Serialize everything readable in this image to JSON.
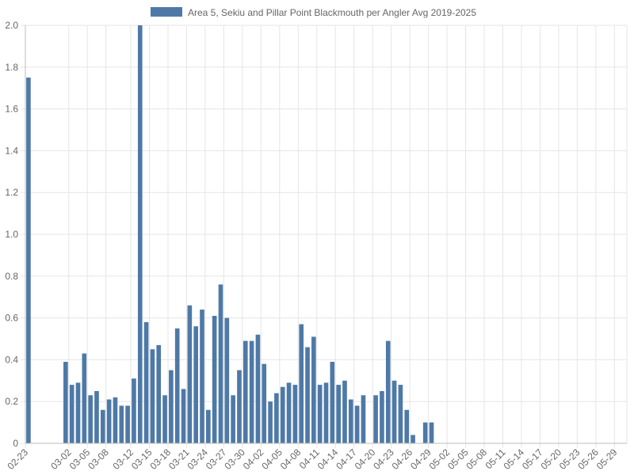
{
  "chart_data": {
    "type": "bar",
    "title": "",
    "xlabel": "",
    "ylabel": "",
    "ylim": [
      0,
      2.0
    ],
    "yticks": [
      "0",
      "0.2",
      "0.4",
      "0.6",
      "0.8",
      "1.0",
      "1.2",
      "1.4",
      "1.6",
      "1.8",
      "2.0"
    ],
    "grid": true,
    "legend_position": "top-center",
    "series_color": "#4e79a7",
    "categories": [
      "02-23",
      "02-24",
      "02-25",
      "02-26",
      "02-27",
      "02-28",
      "03-01",
      "03-02",
      "03-03",
      "03-04",
      "03-05",
      "03-06",
      "03-07",
      "03-08",
      "03-09",
      "03-10",
      "03-11",
      "03-12",
      "03-13",
      "03-14",
      "03-15",
      "03-16",
      "03-17",
      "03-18",
      "03-19",
      "03-20",
      "03-21",
      "03-22",
      "03-23",
      "03-24",
      "03-25",
      "03-26",
      "03-27",
      "03-28",
      "03-29",
      "03-30",
      "03-31",
      "04-01",
      "04-02",
      "04-03",
      "04-04",
      "04-05",
      "04-06",
      "04-07",
      "04-08",
      "04-09",
      "04-10",
      "04-11",
      "04-12",
      "04-13",
      "04-14",
      "04-15",
      "04-16",
      "04-17",
      "04-18",
      "04-19",
      "04-20",
      "04-21",
      "04-22",
      "04-23",
      "04-24",
      "04-25",
      "04-26",
      "04-27",
      "04-28",
      "04-29",
      "04-30",
      "05-01",
      "05-02",
      "05-03",
      "05-04",
      "05-05",
      "05-06",
      "05-07",
      "05-08",
      "05-09",
      "05-10",
      "05-11",
      "05-12",
      "05-13",
      "05-14",
      "05-15",
      "05-16",
      "05-17",
      "05-18",
      "05-19",
      "05-20",
      "05-21",
      "05-22",
      "05-23",
      "05-24",
      "05-25",
      "05-26",
      "05-27",
      "05-28",
      "05-29",
      "05-30"
    ],
    "shown_tick_labels": [
      "02-23",
      "03-02",
      "03-05",
      "03-08",
      "03-12",
      "03-15",
      "03-18",
      "03-21",
      "03-24",
      "03-27",
      "03-30",
      "04-02",
      "04-05",
      "04-08",
      "04-11",
      "04-14",
      "04-17",
      "04-20",
      "04-23",
      "04-26",
      "04-29",
      "05-02",
      "05-05",
      "05-08",
      "05-11",
      "05-14",
      "05-17",
      "05-20",
      "05-23",
      "05-26",
      "05-29"
    ],
    "series": [
      {
        "name": "Area 5, Sekiu and Pillar Point Blackmouth per Angler Avg 2019-2025",
        "values": [
          1.75,
          null,
          null,
          null,
          null,
          null,
          0.39,
          0.28,
          0.29,
          0.43,
          0.23,
          0.25,
          0.16,
          0.21,
          0.22,
          0.18,
          0.18,
          0.31,
          2.0,
          0.58,
          0.45,
          0.47,
          0.23,
          0.35,
          0.55,
          0.26,
          0.66,
          0.56,
          0.64,
          0.16,
          0.61,
          0.76,
          0.6,
          0.23,
          0.35,
          0.49,
          0.49,
          0.52,
          0.38,
          0.2,
          0.24,
          0.27,
          0.29,
          0.28,
          0.57,
          0.46,
          0.51,
          0.28,
          0.29,
          0.39,
          0.28,
          0.3,
          0.21,
          0.18,
          0.23,
          null,
          0.23,
          0.25,
          0.49,
          0.3,
          0.28,
          0.16,
          0.04,
          null,
          0.1,
          0.1,
          null,
          null,
          null,
          null,
          null,
          null,
          null,
          null,
          null,
          null,
          null,
          null,
          null,
          null,
          null,
          null,
          null,
          null,
          null,
          null,
          null,
          null,
          null,
          null,
          null,
          null,
          null,
          null,
          null,
          null,
          null
        ]
      }
    ]
  }
}
